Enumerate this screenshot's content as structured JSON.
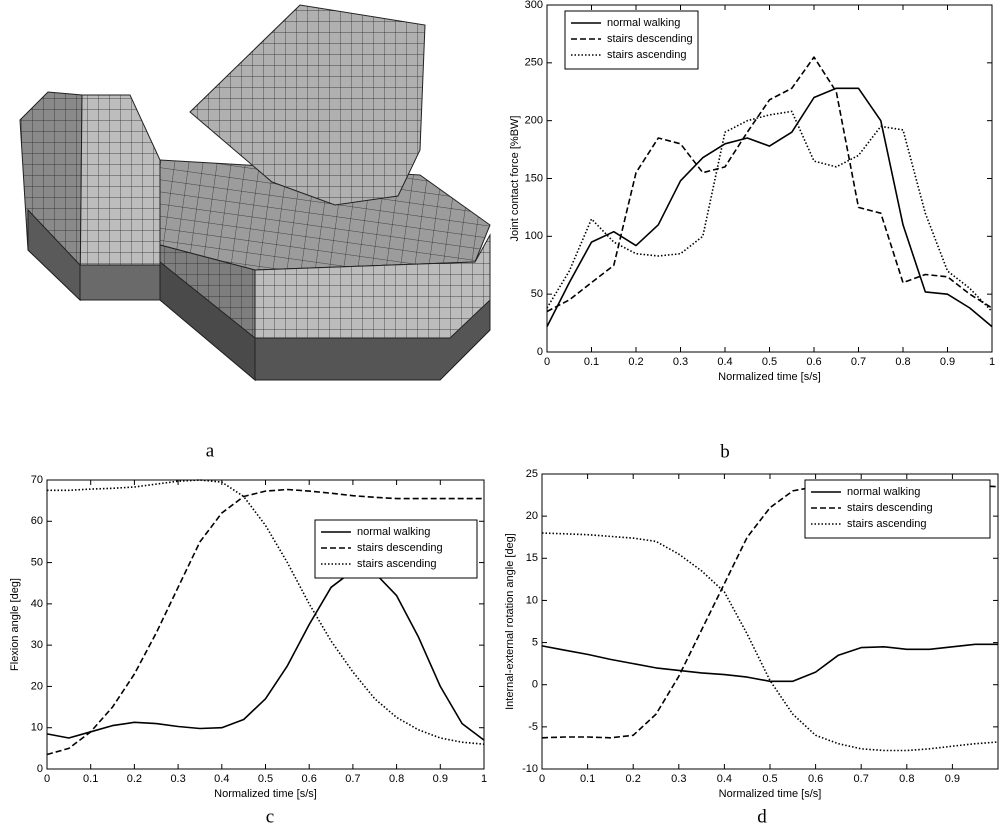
{
  "image_caption": "a",
  "chart_data": [
    {
      "type": "line",
      "caption": "b",
      "xlabel": "Normalized time [s/s]",
      "ylabel": "Joint contact force [%BW]",
      "xlim": [
        0,
        1
      ],
      "xticks": [
        0,
        0.1,
        0.2,
        0.3,
        0.4,
        0.5,
        0.6,
        0.7,
        0.8,
        0.9,
        1
      ],
      "ylim": [
        0,
        300
      ],
      "yticks": [
        0,
        50,
        100,
        150,
        200,
        250,
        300
      ],
      "legend": "upper left",
      "x": [
        0,
        0.05,
        0.1,
        0.15,
        0.2,
        0.25,
        0.3,
        0.35,
        0.4,
        0.45,
        0.5,
        0.55,
        0.6,
        0.65,
        0.7,
        0.75,
        0.8,
        0.85,
        0.9,
        0.95,
        1
      ],
      "series": [
        {
          "name": "normal walking",
          "color": "#000000",
          "dash": "solid",
          "values": [
            22,
            60,
            95,
            104,
            92,
            110,
            148,
            168,
            180,
            185,
            178,
            190,
            220,
            228,
            228,
            200,
            110,
            52,
            50,
            38,
            22
          ]
        },
        {
          "name": "stairs descending",
          "color": "#000000",
          "dash": "dashed",
          "values": [
            35,
            45,
            60,
            75,
            155,
            185,
            180,
            155,
            160,
            190,
            218,
            228,
            255,
            225,
            125,
            120,
            60,
            67,
            65,
            50,
            38
          ]
        },
        {
          "name": "stairs ascending",
          "color": "#000000",
          "dash": "dotted",
          "values": [
            38,
            70,
            115,
            95,
            85,
            83,
            85,
            100,
            190,
            200,
            205,
            208,
            165,
            160,
            170,
            195,
            192,
            120,
            70,
            55,
            35
          ]
        }
      ]
    },
    {
      "type": "line",
      "caption": "c",
      "xlabel": "Normalized time [s/s]",
      "ylabel": "Flexion angle [deg]",
      "xlim": [
        0,
        1
      ],
      "xticks": [
        0,
        0.1,
        0.2,
        0.3,
        0.4,
        0.5,
        0.6,
        0.7,
        0.8,
        0.9,
        1
      ],
      "ylim": [
        0,
        70
      ],
      "yticks": [
        0,
        10,
        20,
        30,
        40,
        50,
        60,
        70
      ],
      "legend": "upper right",
      "x": [
        0,
        0.05,
        0.1,
        0.15,
        0.2,
        0.25,
        0.3,
        0.35,
        0.4,
        0.45,
        0.5,
        0.55,
        0.6,
        0.65,
        0.7,
        0.75,
        0.8,
        0.85,
        0.9,
        0.95,
        1
      ],
      "series": [
        {
          "name": "normal walking",
          "color": "#000000",
          "dash": "solid",
          "values": [
            8.5,
            7.5,
            9,
            10.5,
            11.3,
            11,
            10.3,
            9.8,
            10,
            12,
            17,
            25,
            35,
            44,
            48,
            47.5,
            42,
            32,
            20,
            11,
            7
          ]
        },
        {
          "name": "stairs descending",
          "color": "#000000",
          "dash": "dashed",
          "values": [
            3.5,
            5,
            9,
            15,
            23,
            33,
            44,
            55,
            62,
            66,
            67.3,
            67.7,
            67.3,
            66.8,
            66.2,
            65.8,
            65.5,
            65.5,
            65.5,
            65.5,
            65.5
          ]
        },
        {
          "name": "stairs ascending",
          "color": "#000000",
          "dash": "dotted",
          "values": [
            67.5,
            67.5,
            67.8,
            68,
            68.3,
            69,
            69.7,
            70,
            69.5,
            66,
            59,
            50,
            40,
            31,
            23.5,
            17,
            12.5,
            9.5,
            7.5,
            6.5,
            6
          ]
        }
      ]
    },
    {
      "type": "line",
      "caption": "d",
      "xlabel": "Normalized time [s/s]",
      "ylabel": "Internal-external rotation angle [deg]",
      "xlim": [
        0,
        1
      ],
      "xticks": [
        0,
        0.1,
        0.2,
        0.3,
        0.4,
        0.5,
        0.6,
        0.7,
        0.8,
        0.9
      ],
      "ylim": [
        -10,
        25
      ],
      "yticks": [
        -10,
        -5,
        0,
        5,
        10,
        15,
        20,
        25
      ],
      "legend": "upper right",
      "x": [
        0,
        0.05,
        0.1,
        0.15,
        0.2,
        0.25,
        0.3,
        0.35,
        0.4,
        0.45,
        0.5,
        0.55,
        0.6,
        0.65,
        0.7,
        0.75,
        0.8,
        0.85,
        0.9,
        0.95,
        1
      ],
      "series": [
        {
          "name": "normal walking",
          "color": "#000000",
          "dash": "solid",
          "values": [
            4.6,
            4.1,
            3.6,
            3.0,
            2.5,
            2.0,
            1.7,
            1.4,
            1.2,
            0.9,
            0.4,
            0.4,
            1.5,
            3.5,
            4.4,
            4.5,
            4.2,
            4.2,
            4.5,
            4.8,
            4.8
          ]
        },
        {
          "name": "stairs descending",
          "color": "#000000",
          "dash": "dashed",
          "values": [
            -6.3,
            -6.2,
            -6.2,
            -6.3,
            -6,
            -3.5,
            1,
            6.5,
            12,
            17.5,
            21,
            23,
            23.5,
            23.8,
            24,
            24,
            23.7,
            23.5,
            23.6,
            23.6,
            23.5
          ]
        },
        {
          "name": "stairs ascending",
          "color": "#000000",
          "dash": "dotted",
          "values": [
            18,
            17.9,
            17.8,
            17.6,
            17.4,
            17,
            15.5,
            13.5,
            11,
            6,
            0.5,
            -3.5,
            -6,
            -7,
            -7.6,
            -7.8,
            -7.8,
            -7.6,
            -7.3,
            -7,
            -6.8
          ]
        }
      ]
    }
  ]
}
